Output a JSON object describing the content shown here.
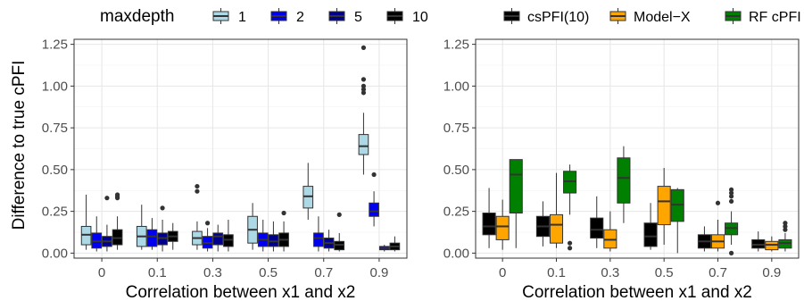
{
  "chart_data": [
    {
      "type": "boxplot",
      "ylabel": "Difference to true cPFI",
      "xlabel": "Correlation between x1 and x2",
      "categories": [
        "0",
        "0.1",
        "0.3",
        "0.5",
        "0.7",
        "0.9"
      ],
      "ylim": [
        -0.03,
        1.28
      ],
      "yticks": [
        "0.00",
        "0.25",
        "0.50",
        "0.75",
        "1.00",
        "1.25"
      ],
      "grid": true,
      "legend": {
        "title": "maxdepth",
        "position": "top",
        "entries": [
          "1",
          "2",
          "5",
          "10"
        ]
      },
      "series": [
        {
          "name": "1",
          "color": "#add8e6",
          "boxes": [
            {
              "whisker_low": 0.02,
              "q1": 0.05,
              "median": 0.11,
              "q3": 0.16,
              "whisker_high": 0.35,
              "outliers": []
            },
            {
              "whisker_low": 0.02,
              "q1": 0.04,
              "median": 0.1,
              "q3": 0.16,
              "whisker_high": 0.29,
              "outliers": []
            },
            {
              "whisker_low": 0.02,
              "q1": 0.05,
              "median": 0.09,
              "q3": 0.13,
              "whisker_high": 0.19,
              "outliers": [
                0.37,
                0.4
              ]
            },
            {
              "whisker_low": 0.02,
              "q1": 0.06,
              "median": 0.14,
              "q3": 0.22,
              "whisker_high": 0.3,
              "outliers": []
            },
            {
              "whisker_low": 0.2,
              "q1": 0.27,
              "median": 0.34,
              "q3": 0.4,
              "whisker_high": 0.54,
              "outliers": []
            },
            {
              "whisker_low": 0.47,
              "q1": 0.59,
              "median": 0.64,
              "q3": 0.71,
              "whisker_high": 0.84,
              "outliers": [
                0.96,
                0.98,
                1.0,
                1.04,
                1.23
              ]
            }
          ]
        },
        {
          "name": "2",
          "color": "#0000ee",
          "boxes": [
            {
              "whisker_low": 0.01,
              "q1": 0.03,
              "median": 0.07,
              "q3": 0.12,
              "whisker_high": 0.22,
              "outliers": []
            },
            {
              "whisker_low": 0.02,
              "q1": 0.04,
              "median": 0.1,
              "q3": 0.14,
              "whisker_high": 0.21,
              "outliers": []
            },
            {
              "whisker_low": 0.01,
              "q1": 0.03,
              "median": 0.06,
              "q3": 0.1,
              "whisker_high": 0.15,
              "outliers": [
                0.18
              ]
            },
            {
              "whisker_low": 0.01,
              "q1": 0.04,
              "median": 0.08,
              "q3": 0.12,
              "whisker_high": 0.2,
              "outliers": []
            },
            {
              "whisker_low": 0.01,
              "q1": 0.04,
              "median": 0.09,
              "q3": 0.12,
              "whisker_high": 0.22,
              "outliers": []
            },
            {
              "whisker_low": 0.16,
              "q1": 0.22,
              "median": 0.25,
              "q3": 0.3,
              "whisker_high": 0.37,
              "outliers": [
                0.47
              ]
            }
          ]
        },
        {
          "name": "5",
          "color": "#00008b",
          "boxes": [
            {
              "whisker_low": 0.01,
              "q1": 0.04,
              "median": 0.07,
              "q3": 0.1,
              "whisker_high": 0.17,
              "outliers": [
                0.33
              ]
            },
            {
              "whisker_low": 0.01,
              "q1": 0.05,
              "median": 0.09,
              "q3": 0.12,
              "whisker_high": 0.2,
              "outliers": [
                0.27
              ]
            },
            {
              "whisker_low": 0.01,
              "q1": 0.05,
              "median": 0.1,
              "q3": 0.12,
              "whisker_high": 0.17,
              "outliers": []
            },
            {
              "whisker_low": 0.01,
              "q1": 0.04,
              "median": 0.07,
              "q3": 0.11,
              "whisker_high": 0.19,
              "outliers": []
            },
            {
              "whisker_low": 0.01,
              "q1": 0.03,
              "median": 0.06,
              "q3": 0.09,
              "whisker_high": 0.14,
              "outliers": []
            },
            {
              "whisker_low": 0.01,
              "q1": 0.02,
              "median": 0.03,
              "q3": 0.04,
              "whisker_high": 0.05,
              "outliers": []
            }
          ]
        },
        {
          "name": "10",
          "color": "#000000",
          "boxes": [
            {
              "whisker_low": 0.02,
              "q1": 0.05,
              "median": 0.09,
              "q3": 0.14,
              "whisker_high": 0.22,
              "outliers": [
                0.33,
                0.34,
                0.35
              ]
            },
            {
              "whisker_low": 0.02,
              "q1": 0.07,
              "median": 0.1,
              "q3": 0.13,
              "whisker_high": 0.18,
              "outliers": []
            },
            {
              "whisker_low": 0.01,
              "q1": 0.04,
              "median": 0.08,
              "q3": 0.11,
              "whisker_high": 0.2,
              "outliers": []
            },
            {
              "whisker_low": 0.01,
              "q1": 0.04,
              "median": 0.08,
              "q3": 0.12,
              "whisker_high": 0.19,
              "outliers": [
                0.24
              ]
            },
            {
              "whisker_low": 0.01,
              "q1": 0.02,
              "median": 0.05,
              "q3": 0.07,
              "whisker_high": 0.12,
              "outliers": [
                0.23
              ]
            },
            {
              "whisker_low": 0.01,
              "q1": 0.02,
              "median": 0.04,
              "q3": 0.06,
              "whisker_high": 0.1,
              "outliers": []
            }
          ]
        }
      ]
    },
    {
      "type": "boxplot",
      "ylabel": "",
      "xlabel": "Correlation between x1 and x2",
      "categories": [
        "0",
        "0.1",
        "0.3",
        "0.5",
        "0.7",
        "0.9"
      ],
      "ylim": [
        -0.03,
        1.28
      ],
      "yticks": [
        "0.00",
        "0.25",
        "0.50",
        "0.75",
        "1.00",
        "1.25"
      ],
      "grid": true,
      "legend": {
        "title": "",
        "position": "top",
        "entries": [
          "csPFI(10)",
          "Model−X",
          "RF cPFI"
        ]
      },
      "series": [
        {
          "name": "csPFI(10)",
          "color": "#000000",
          "boxes": [
            {
              "whisker_low": 0.03,
              "q1": 0.11,
              "median": 0.16,
              "q3": 0.24,
              "whisker_high": 0.39,
              "outliers": []
            },
            {
              "whisker_low": 0.04,
              "q1": 0.1,
              "median": 0.16,
              "q3": 0.22,
              "whisker_high": 0.31,
              "outliers": []
            },
            {
              "whisker_low": 0.03,
              "q1": 0.09,
              "median": 0.14,
              "q3": 0.21,
              "whisker_high": 0.34,
              "outliers": []
            },
            {
              "whisker_low": 0.02,
              "q1": 0.04,
              "median": 0.1,
              "q3": 0.18,
              "whisker_high": 0.3,
              "outliers": []
            },
            {
              "whisker_low": 0.01,
              "q1": 0.03,
              "median": 0.07,
              "q3": 0.11,
              "whisker_high": 0.16,
              "outliers": []
            },
            {
              "whisker_low": 0.01,
              "q1": 0.03,
              "median": 0.05,
              "q3": 0.08,
              "whisker_high": 0.13,
              "outliers": []
            }
          ]
        },
        {
          "name": "Model−X",
          "color": "#ffa500",
          "boxes": [
            {
              "whisker_low": 0.02,
              "q1": 0.08,
              "median": 0.16,
              "q3": 0.22,
              "whisker_high": 0.32,
              "outliers": []
            },
            {
              "whisker_low": 0.03,
              "q1": 0.06,
              "median": 0.17,
              "q3": 0.23,
              "whisker_high": 0.48,
              "outliers": []
            },
            {
              "whisker_low": 0.01,
              "q1": 0.03,
              "median": 0.08,
              "q3": 0.14,
              "whisker_high": 0.25,
              "outliers": []
            },
            {
              "whisker_low": 0.05,
              "q1": 0.17,
              "median": 0.31,
              "q3": 0.4,
              "whisker_high": 0.51,
              "outliers": []
            },
            {
              "whisker_low": 0.01,
              "q1": 0.03,
              "median": 0.07,
              "q3": 0.11,
              "whisker_high": 0.2,
              "outliers": [
                0.3
              ]
            },
            {
              "whisker_low": 0.01,
              "q1": 0.02,
              "median": 0.05,
              "q3": 0.07,
              "whisker_high": 0.1,
              "outliers": []
            }
          ]
        },
        {
          "name": "RF cPFI",
          "color": "#008000",
          "boxes": [
            {
              "whisker_low": 0.03,
              "q1": 0.24,
              "median": 0.47,
              "q3": 0.56,
              "whisker_high": 0.56,
              "outliers": []
            },
            {
              "whisker_low": 0.23,
              "q1": 0.36,
              "median": 0.43,
              "q3": 0.49,
              "whisker_high": 0.53,
              "outliers": [
                0.03,
                0.06
              ]
            },
            {
              "whisker_low": 0.18,
              "q1": 0.3,
              "median": 0.45,
              "q3": 0.57,
              "whisker_high": 0.64,
              "outliers": []
            },
            {
              "whisker_low": 0.0,
              "q1": 0.19,
              "median": 0.29,
              "q3": 0.38,
              "whisker_high": 0.39,
              "outliers": []
            },
            {
              "whisker_low": 0.05,
              "q1": 0.11,
              "median": 0.15,
              "q3": 0.18,
              "whisker_high": 0.25,
              "outliers": [
                0.0,
                0.31,
                0.34,
                0.36,
                0.38
              ]
            },
            {
              "whisker_low": 0.01,
              "q1": 0.03,
              "median": 0.06,
              "q3": 0.08,
              "whisker_high": 0.12,
              "outliers": [
                0.14,
                0.16,
                0.18
              ]
            }
          ]
        }
      ]
    }
  ]
}
